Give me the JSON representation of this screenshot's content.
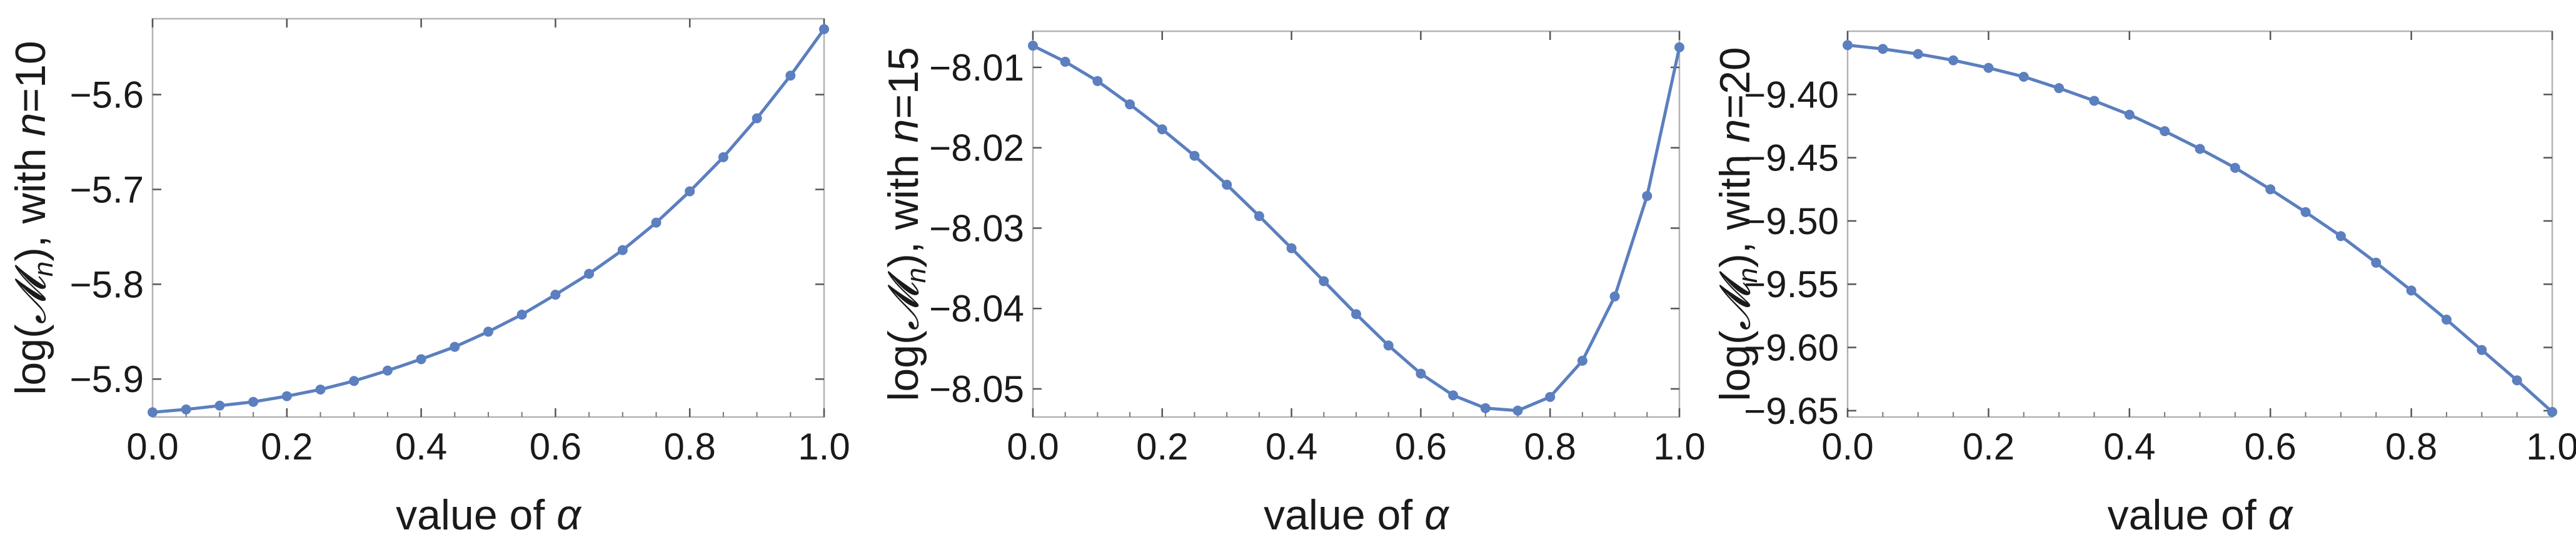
{
  "chart_data": [
    {
      "type": "line",
      "title": "",
      "xlabel": "value of α",
      "ylabel": "log(𝓜ₙ), with n=10",
      "ylabel_parts": {
        "prefix": "log(",
        "script": "𝓜",
        "subscript": "n",
        "middle": "), with ",
        "var": "n",
        "suffix": "=10"
      },
      "xlim": [
        0,
        1
      ],
      "ylim": [
        -5.94,
        -5.52
      ],
      "xticks": [
        0,
        0.2,
        0.4,
        0.6,
        0.8,
        1
      ],
      "xtick_labels": [
        "0.0",
        "0.2",
        "0.4",
        "0.6",
        "0.8",
        "1.0"
      ],
      "yticks": [
        -5.9,
        -5.8,
        -5.7,
        -5.6
      ],
      "ytick_labels": [
        "-5.9",
        "-5.8",
        "-5.7",
        "-5.6"
      ],
      "x": [
        0,
        0.05,
        0.1,
        0.15,
        0.2,
        0.25,
        0.3,
        0.35,
        0.4,
        0.45,
        0.5,
        0.55,
        0.6,
        0.65,
        0.7,
        0.75,
        0.8,
        0.85,
        0.9,
        0.95,
        1.0
      ],
      "y": [
        -5.935,
        -5.932,
        -5.928,
        -5.924,
        -5.918,
        -5.911,
        -5.902,
        -5.891,
        -5.879,
        -5.866,
        -5.85,
        -5.832,
        -5.811,
        -5.789,
        -5.764,
        -5.735,
        -5.702,
        -5.666,
        -5.625,
        -5.58,
        -5.531
      ]
    },
    {
      "type": "line",
      "title": "",
      "xlabel": "value of α",
      "ylabel": "log(𝓜ₙ), with n=15",
      "ylabel_parts": {
        "prefix": "log(",
        "script": "𝓜",
        "subscript": "n",
        "middle": "), with ",
        "var": "n",
        "suffix": "=15"
      },
      "xlim": [
        0,
        1
      ],
      "ylim": [
        -8.0535,
        -8.0055
      ],
      "xticks": [
        0,
        0.2,
        0.4,
        0.6,
        0.8,
        1
      ],
      "xtick_labels": [
        "0.0",
        "0.2",
        "0.4",
        "0.6",
        "0.8",
        "1.0"
      ],
      "yticks": [
        -8.05,
        -8.04,
        -8.03,
        -8.02,
        -8.01
      ],
      "ytick_labels": [
        "-8.05",
        "-8.04",
        "-8.03",
        "-8.02",
        "-8.01"
      ],
      "x": [
        0,
        0.05,
        0.1,
        0.15,
        0.2,
        0.25,
        0.3,
        0.35,
        0.4,
        0.45,
        0.5,
        0.55,
        0.6,
        0.65,
        0.7,
        0.75,
        0.8,
        0.85,
        0.9,
        0.95,
        1.0
      ],
      "y": [
        -8.0073,
        -8.0093,
        -8.0117,
        -8.0146,
        -8.0177,
        -8.021,
        -8.0246,
        -8.0285,
        -8.0325,
        -8.0366,
        -8.0407,
        -8.0446,
        -8.0481,
        -8.0508,
        -8.0524,
        -8.0527,
        -8.051,
        -8.0465,
        -8.0385,
        -8.026,
        -8.0075
      ]
    },
    {
      "type": "line",
      "title": "",
      "xlabel": "value of α",
      "ylabel": "log(𝓜ₙ), with n=20",
      "ylabel_parts": {
        "prefix": "log(",
        "script": "𝓜",
        "subscript": "n",
        "middle": "), with ",
        "var": "n",
        "suffix": "=20"
      },
      "xlim": [
        0,
        1
      ],
      "ylim": [
        -9.655,
        -9.35
      ],
      "xticks": [
        0,
        0.2,
        0.4,
        0.6,
        0.8,
        1
      ],
      "xtick_labels": [
        "0.0",
        "0.2",
        "0.4",
        "0.6",
        "0.8",
        "1.0"
      ],
      "yticks": [
        -9.65,
        -9.6,
        -9.55,
        -9.5,
        -9.45,
        -9.4
      ],
      "ytick_labels": [
        "-9.65",
        "-9.60",
        "-9.55",
        "-9.50",
        "-9.45",
        "-9.40"
      ],
      "x": [
        0,
        0.05,
        0.1,
        0.15,
        0.2,
        0.25,
        0.3,
        0.35,
        0.4,
        0.45,
        0.5,
        0.55,
        0.6,
        0.65,
        0.7,
        0.75,
        0.8,
        0.85,
        0.9,
        0.95,
        1.0
      ],
      "y": [
        -9.361,
        -9.364,
        -9.368,
        -9.373,
        -9.379,
        -9.386,
        -9.395,
        -9.405,
        -9.416,
        -9.429,
        -9.443,
        -9.458,
        -9.475,
        -9.493,
        -9.512,
        -9.533,
        -9.555,
        -9.578,
        -9.602,
        -9.626,
        -9.651
      ]
    }
  ],
  "style": {
    "line_color": "#5b7fbf",
    "marker_color": "#5b7fbf",
    "frame_color": "#b3b3b3",
    "text_color": "#1a1a1a"
  }
}
